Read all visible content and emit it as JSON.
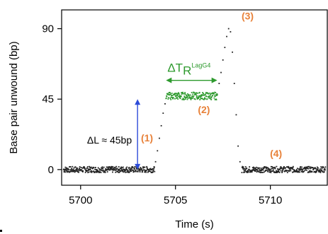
{
  "chart_data": {
    "type": "scatter",
    "xlabel": "Time (s)",
    "ylabel": "Base pair unwound (bp)",
    "xlim": [
      5699,
      5713
    ],
    "ylim": [
      -10,
      102
    ],
    "x_ticks": [
      5700,
      5705,
      5710
    ],
    "y_ticks": [
      0,
      45,
      90
    ],
    "grid": false,
    "series": [
      {
        "color": "#222222",
        "segments": [
          {
            "x_start": 5699.1,
            "x_end": 5703.9,
            "y": 0,
            "noise": 1.2
          },
          {
            "points": [
              [
                5703.95,
                5
              ],
              [
                5704.05,
                12
              ],
              [
                5704.15,
                20
              ],
              [
                5704.25,
                28
              ],
              [
                5704.35,
                36
              ],
              [
                5704.45,
                42
              ]
            ]
          },
          {
            "points": [
              [
                5707.2,
                48
              ],
              [
                5707.3,
                55
              ],
              [
                5707.4,
                62
              ],
              [
                5707.5,
                70
              ],
              [
                5707.6,
                78
              ],
              [
                5707.7,
                85
              ],
              [
                5707.8,
                90
              ],
              [
                5707.9,
                88
              ],
              [
                5708.0,
                75
              ],
              [
                5708.1,
                55
              ],
              [
                5708.2,
                35
              ],
              [
                5708.3,
                15
              ],
              [
                5708.4,
                5
              ]
            ]
          },
          {
            "x_start": 5708.5,
            "x_end": 5712.9,
            "y": 0,
            "noise": 1.2
          }
        ]
      },
      {
        "color": "#2e9a2e",
        "segments": [
          {
            "x_start": 5704.5,
            "x_end": 5707.2,
            "y": 47,
            "noise": 1.5
          }
        ]
      }
    ],
    "annotations": {
      "delta_l": {
        "label": "ΔL ≈ 45bp",
        "x": 5703.0,
        "y_from": 0,
        "y_to": 45,
        "color": "#2c4bd8"
      },
      "delta_t": {
        "label": "ΔT",
        "sub": "R",
        "sup": "LagG4",
        "x_from": 5704.5,
        "x_to": 5707.2,
        "y": 57,
        "color": "#2e9a2e"
      },
      "phases": [
        {
          "label": "(1)",
          "x": 5703.5,
          "y": 18
        },
        {
          "label": "(2)",
          "x": 5706.5,
          "y": 36
        },
        {
          "label": "(3)",
          "x": 5708.8,
          "y": 96
        },
        {
          "label": "(4)",
          "x": 5710.3,
          "y": 8
        }
      ]
    }
  }
}
